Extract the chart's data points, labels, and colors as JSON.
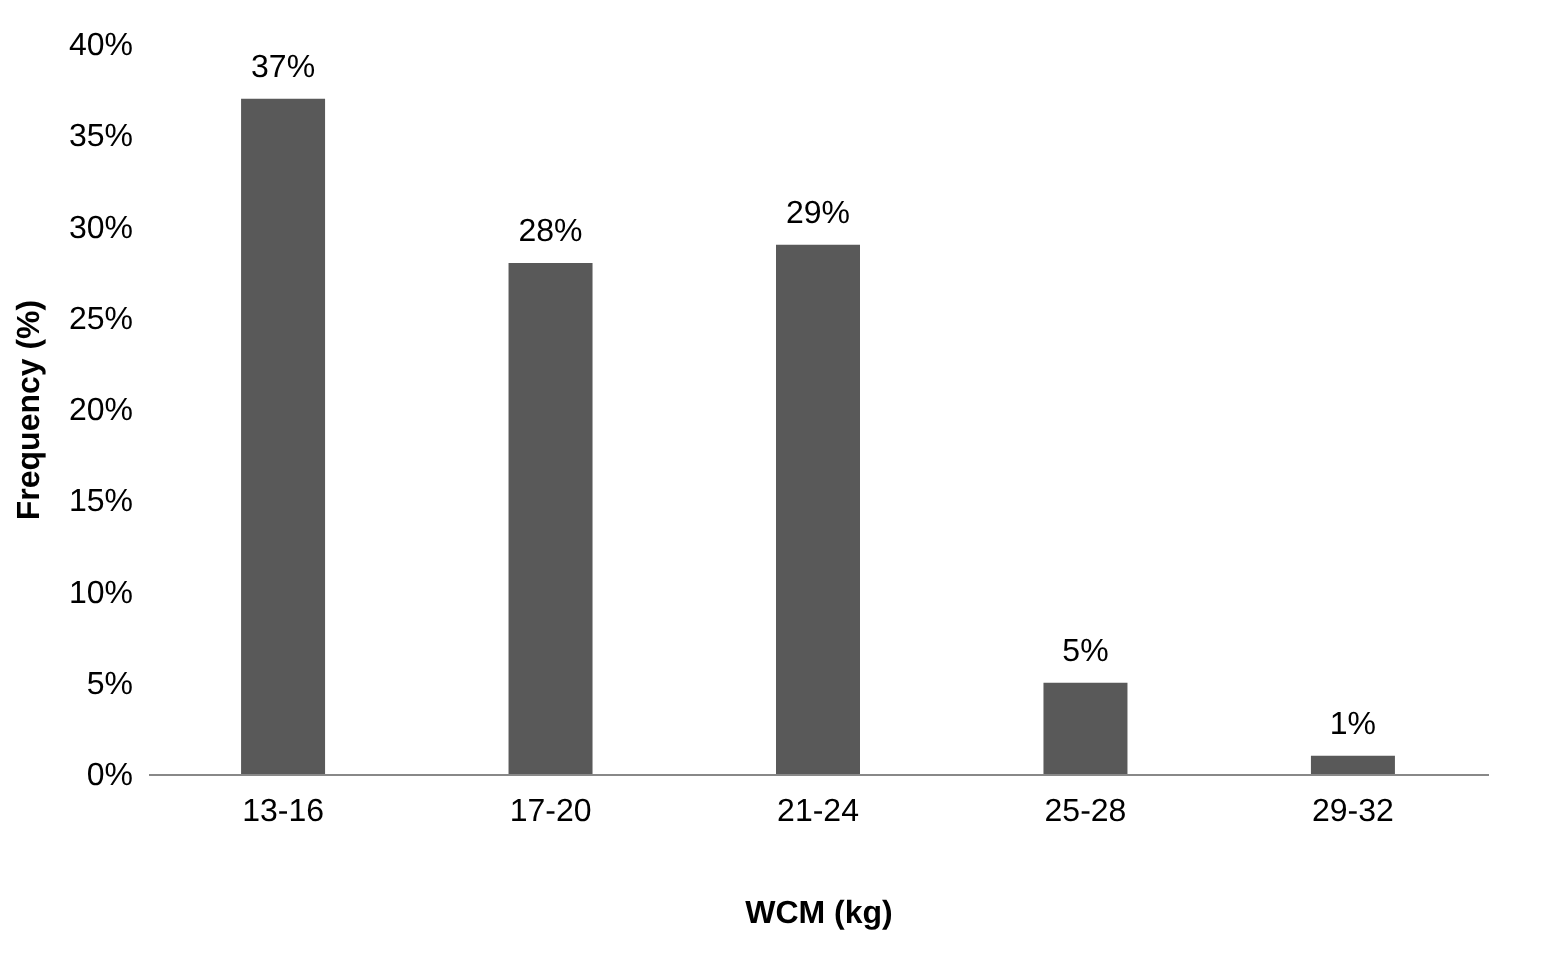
{
  "chart_data": {
    "type": "bar",
    "xlabel": "WCM (kg)",
    "ylabel": "Frequency (%)",
    "categories": [
      "13-16",
      "17-20",
      "21-24",
      "25-28",
      "29-32"
    ],
    "values": [
      37,
      28,
      29,
      5,
      1
    ],
    "value_labels": [
      "37%",
      "28%",
      "29%",
      "5%",
      "1%"
    ],
    "color": "#595959",
    "ylim": [
      0,
      40
    ],
    "yticks": [
      {
        "value": 0,
        "label": "0%"
      },
      {
        "value": 5,
        "label": "5%"
      },
      {
        "value": 10,
        "label": "10%"
      },
      {
        "value": 15,
        "label": "15%"
      },
      {
        "value": 20,
        "label": "20%"
      },
      {
        "value": 25,
        "label": "25%"
      },
      {
        "value": 30,
        "label": "30%"
      },
      {
        "value": 35,
        "label": "35%"
      },
      {
        "value": 40,
        "label": "40%"
      }
    ],
    "grid": false
  }
}
